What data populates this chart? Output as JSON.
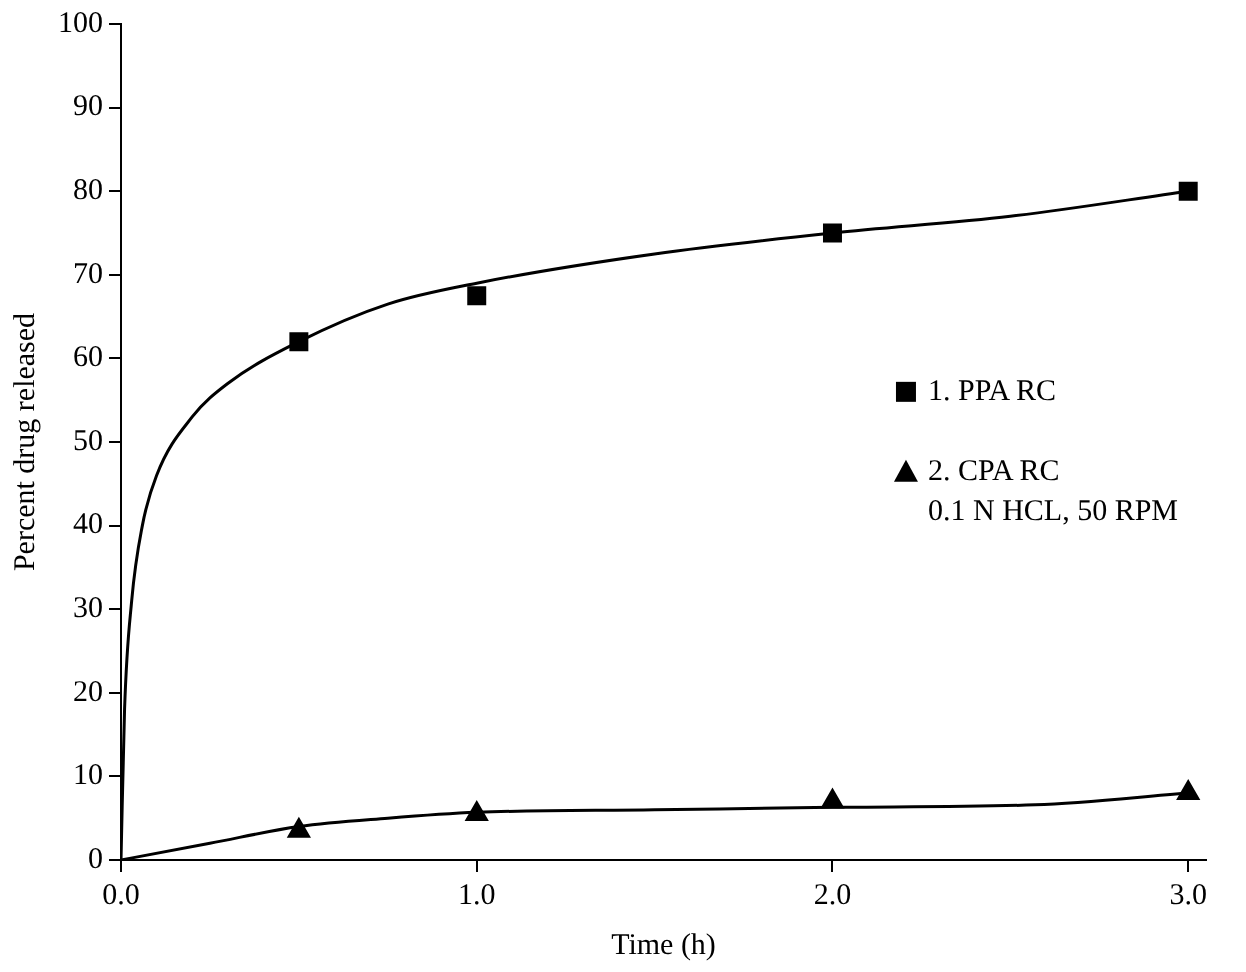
{
  "chart_data": {
    "type": "scatter",
    "xlabel": "Time (h)",
    "ylabel": "Percent drug released",
    "xlim": [
      0,
      3.05
    ],
    "xticks": [
      {
        "value": 0,
        "label": "0.0"
      },
      {
        "value": 1,
        "label": "1.0"
      },
      {
        "value": 2,
        "label": "2.0"
      },
      {
        "value": 3,
        "label": "3.0"
      }
    ],
    "ylim": [
      0,
      100
    ],
    "yticks": [
      0,
      10,
      20,
      30,
      40,
      50,
      60,
      70,
      80,
      90,
      100
    ],
    "grid": false,
    "legend": "right",
    "annotations": [
      "0.1 N HCL, 50 RPM"
    ],
    "series": [
      {
        "name": "1. PPA RC",
        "color": "#000000",
        "marker": "square",
        "x": [
          0.5,
          1,
          2,
          3
        ],
        "values": [
          62,
          67.5,
          75,
          80
        ]
      },
      {
        "name": "2. CPA RC",
        "color": "#000000",
        "marker": "triangle",
        "x": [
          0.5,
          1,
          2,
          3
        ],
        "values": [
          3.5,
          5.5,
          7,
          8
        ]
      },
      {
        "type": "line",
        "color": "#000000",
        "marker": "none",
        "x": [
          0,
          0.01,
          0.03,
          0.06,
          0.1,
          0.2,
          0.3,
          0.5,
          0.75,
          1,
          1.5,
          2,
          2.5,
          3
        ],
        "values": [
          0,
          18,
          31,
          40,
          46,
          53,
          57,
          62,
          66.5,
          69,
          72.5,
          75,
          77,
          80
        ]
      },
      {
        "type": "line",
        "color": "#000000",
        "marker": "none",
        "x": [
          0,
          0.25,
          0.5,
          0.75,
          1,
          1.5,
          2,
          2.57,
          3
        ],
        "values": [
          0,
          2,
          4,
          5,
          5.7,
          6,
          6.3,
          6.6,
          8
        ]
      }
    ]
  }
}
